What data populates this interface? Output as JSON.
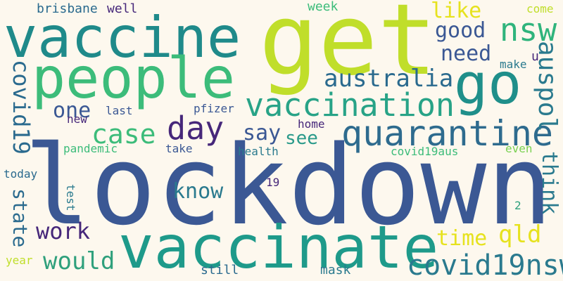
{
  "words": [
    {
      "text": "lockdown",
      "color": "#3b5894"
    },
    {
      "text": "get",
      "color": "#c0de2a"
    },
    {
      "text": "vaccine",
      "color": "#1f8a8a"
    },
    {
      "text": "people",
      "color": "#3cbc7a"
    },
    {
      "text": "vaccinate",
      "color": "#1e9a8a"
    },
    {
      "text": "quarantine",
      "color": "#2e6b8e"
    },
    {
      "text": "go",
      "color": "#1f8f8a"
    },
    {
      "text": "vaccination",
      "color": "#28a387"
    },
    {
      "text": "australia",
      "color": "#2a6a8e"
    },
    {
      "text": "covid19nsw",
      "color": "#2a7a8e"
    },
    {
      "text": "nsw",
      "color": "#2fb47c"
    },
    {
      "text": "day",
      "color": "#46277a"
    },
    {
      "text": "case",
      "color": "#3cbc7a"
    },
    {
      "text": "auspol",
      "color": "#2a7a8e"
    },
    {
      "text": "covid19",
      "color": "#2a6a8e"
    },
    {
      "text": "say",
      "color": "#3b5894"
    },
    {
      "text": "good",
      "color": "#3b5894"
    },
    {
      "text": "need",
      "color": "#3b5894"
    },
    {
      "text": "one",
      "color": "#3b5894"
    },
    {
      "text": "see",
      "color": "#2a9a8a"
    },
    {
      "text": "know",
      "color": "#2a7a8e"
    },
    {
      "text": "think",
      "color": "#2a7a8e"
    },
    {
      "text": "work",
      "color": "#46277a"
    },
    {
      "text": "would",
      "color": "#2fa07c"
    },
    {
      "text": "qld",
      "color": "#e6e21e"
    },
    {
      "text": "time",
      "color": "#e6e21e"
    },
    {
      "text": "like",
      "color": "#e6e21e"
    },
    {
      "text": "state",
      "color": "#2a6a8e"
    },
    {
      "text": "brisbane",
      "color": "#2a6a8e"
    },
    {
      "text": "well",
      "color": "#46277a"
    },
    {
      "text": "week",
      "color": "#3cbc7a"
    },
    {
      "text": "come",
      "color": "#c0de2a"
    },
    {
      "text": "make",
      "color": "#2a7a8e"
    },
    {
      "text": "u",
      "color": "#46277a"
    },
    {
      "text": "last",
      "color": "#3b5894"
    },
    {
      "text": "pfizer",
      "color": "#3b5894"
    },
    {
      "text": "new",
      "color": "#46277a"
    },
    {
      "text": "pandemic",
      "color": "#3cbc7a"
    },
    {
      "text": "take",
      "color": "#3b5894"
    },
    {
      "text": "health",
      "color": "#2a7a8e"
    },
    {
      "text": "home",
      "color": "#46277a"
    },
    {
      "text": "covid19aus",
      "color": "#3cbc7a"
    },
    {
      "text": "even",
      "color": "#7ad151"
    },
    {
      "text": "today",
      "color": "#2a6a8e"
    },
    {
      "text": "test",
      "color": "#2a7a8e"
    },
    {
      "text": "19",
      "color": "#46277a"
    },
    {
      "text": "2",
      "color": "#2fa07c"
    },
    {
      "text": "year",
      "color": "#c0de2a"
    },
    {
      "text": "still",
      "color": "#2a6a8e"
    },
    {
      "text": "mask",
      "color": "#2a7a8e"
    }
  ]
}
